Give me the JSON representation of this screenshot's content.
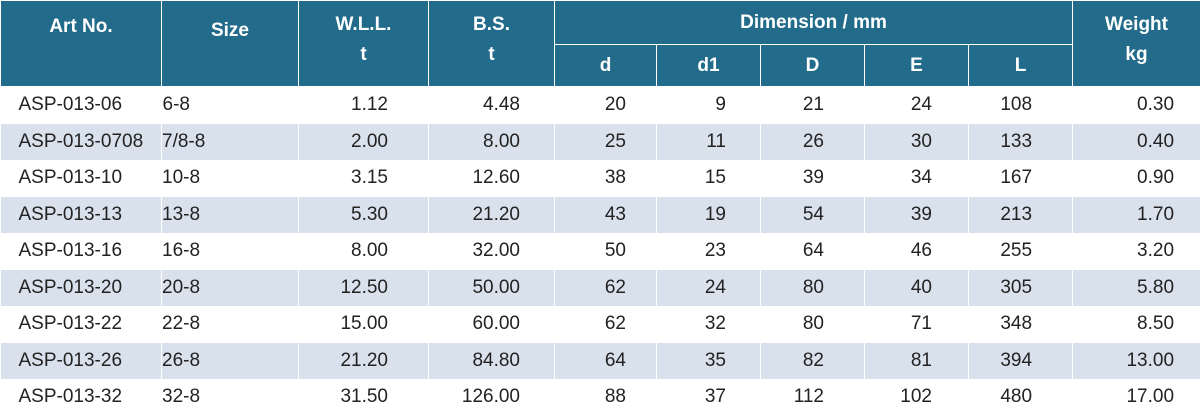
{
  "headers": {
    "art_no": "Art No.",
    "size": "Size",
    "wll": "W.L.L.",
    "wll_unit": "t",
    "bs": "B.S.",
    "bs_unit": "t",
    "dimension": "Dimension / mm",
    "d": "d",
    "d1": "d1",
    "D": "D",
    "E": "E",
    "L": "L",
    "weight": "Weight",
    "weight_unit": "kg"
  },
  "colors": {
    "header_bg": "#236b8b",
    "header_text": "#ffffff",
    "stripe_bg": "#d9e1ec"
  },
  "rows": [
    {
      "art": "ASP-013-06",
      "size": "6-8",
      "wll": "1.12",
      "bs": "4.48",
      "d": "20",
      "d1": "9",
      "D": "21",
      "E": "24",
      "L": "108",
      "weight": "0.30"
    },
    {
      "art": "ASP-013-0708",
      "size": "7/8-8",
      "wll": "2.00",
      "bs": "8.00",
      "d": "25",
      "d1": "11",
      "D": "26",
      "E": "30",
      "L": "133",
      "weight": "0.40"
    },
    {
      "art": "ASP-013-10",
      "size": "10-8",
      "wll": "3.15",
      "bs": "12.60",
      "d": "38",
      "d1": "15",
      "D": "39",
      "E": "34",
      "L": "167",
      "weight": "0.90"
    },
    {
      "art": "ASP-013-13",
      "size": "13-8",
      "wll": "5.30",
      "bs": "21.20",
      "d": "43",
      "d1": "19",
      "D": "54",
      "E": "39",
      "L": "213",
      "weight": "1.70"
    },
    {
      "art": "ASP-013-16",
      "size": "16-8",
      "wll": "8.00",
      "bs": "32.00",
      "d": "50",
      "d1": "23",
      "D": "64",
      "E": "46",
      "L": "255",
      "weight": "3.20"
    },
    {
      "art": "ASP-013-20",
      "size": "20-8",
      "wll": "12.50",
      "bs": "50.00",
      "d": "62",
      "d1": "24",
      "D": "80",
      "E": "40",
      "L": "305",
      "weight": "5.80"
    },
    {
      "art": "ASP-013-22",
      "size": "22-8",
      "wll": "15.00",
      "bs": "60.00",
      "d": "62",
      "d1": "32",
      "D": "80",
      "E": "71",
      "L": "348",
      "weight": "8.50"
    },
    {
      "art": "ASP-013-26",
      "size": "26-8",
      "wll": "21.20",
      "bs": "84.80",
      "d": "64",
      "d1": "35",
      "D": "82",
      "E": "81",
      "L": "394",
      "weight": "13.00"
    },
    {
      "art": "ASP-013-32",
      "size": "32-8",
      "wll": "31.50",
      "bs": "126.00",
      "d": "88",
      "d1": "37",
      "D": "112",
      "E": "102",
      "L": "480",
      "weight": "17.00"
    }
  ]
}
